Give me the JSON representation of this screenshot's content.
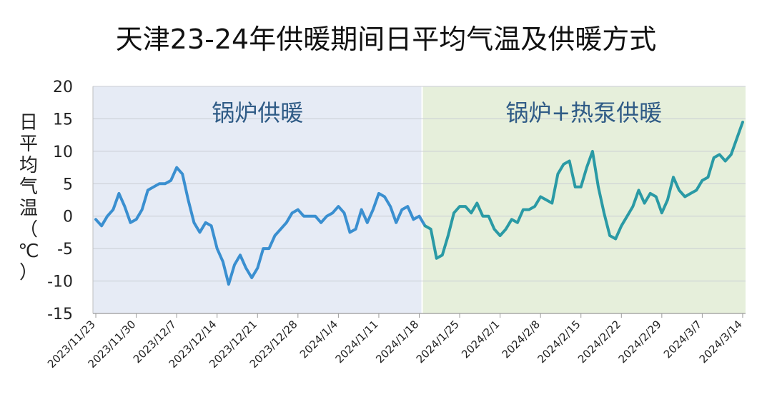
{
  "chart_data": {
    "type": "line",
    "title": "天津23-24年供暖期间日平均气温及供暖方式",
    "ylabel_chars": [
      "日",
      "平",
      "均",
      "气",
      "温",
      "（",
      "℃",
      "）"
    ],
    "ylabel": "日平均气温（℃）",
    "xlabel": "",
    "ylim": [
      -15,
      20
    ],
    "yticks": [
      20,
      15,
      10,
      5,
      0,
      -5,
      -10,
      -15
    ],
    "grid": true,
    "legend": "none",
    "x_tick_labels": [
      "2023/11/23",
      "2023/11/30",
      "2023/12/7",
      "2023/12/14",
      "2023/12/21",
      "2023/12/28",
      "2024/1/4",
      "2024/1/11",
      "2024/1/18",
      "2024/1/25",
      "2024/2/1",
      "2024/2/8",
      "2024/2/15",
      "2024/2/22",
      "2024/2/29",
      "2024/3/7",
      "2024/3/14"
    ],
    "regions": [
      {
        "label": "锅炉供暖",
        "start": "2023/11/23",
        "end": "2024/1/19",
        "color": "#e6ebf5"
      },
      {
        "label": "锅炉+热泵供暖",
        "start": "2024/1/19",
        "end": "2024/3/15",
        "color": "#e6efdb"
      }
    ],
    "series": [
      {
        "color_before": "#3a8fd0",
        "color_after": "#2a9aa5",
        "start_date": "2023/11/23",
        "values": [
          -0.5,
          -1.5,
          0,
          1,
          3.5,
          1.5,
          -1,
          -0.5,
          1,
          4,
          4.5,
          5,
          5,
          5.5,
          7.5,
          6.5,
          2.5,
          -1,
          -2.5,
          -1,
          -1.5,
          -5,
          -7,
          -10.5,
          -7.5,
          -6,
          -8,
          -9.5,
          -8,
          -5,
          -5,
          -3,
          -2,
          -1,
          0.5,
          1,
          0,
          0,
          0,
          -1,
          0,
          0.5,
          1.5,
          0.5,
          -2.5,
          -2,
          1,
          -1,
          1,
          3.5,
          3,
          1.5,
          -1,
          1,
          1.5,
          -0.5,
          0,
          -1.5,
          -2,
          -6.5,
          -6,
          -3,
          0.5,
          1.5,
          1.5,
          0.5,
          2,
          0,
          0,
          -2,
          -3,
          -2,
          -0.5,
          -1,
          1,
          1,
          1.5,
          3,
          2.5,
          2,
          6.5,
          8,
          8.5,
          4.5,
          4.5,
          7.5,
          10,
          4.5,
          0.5,
          -3,
          -3.5,
          -1.5,
          0,
          1.5,
          4,
          2,
          3.5,
          3,
          0.5,
          2.5,
          6,
          4,
          3,
          3.5,
          4,
          5.5,
          6,
          9,
          9.5,
          8.5,
          9.5,
          12,
          14.5
        ]
      }
    ]
  }
}
